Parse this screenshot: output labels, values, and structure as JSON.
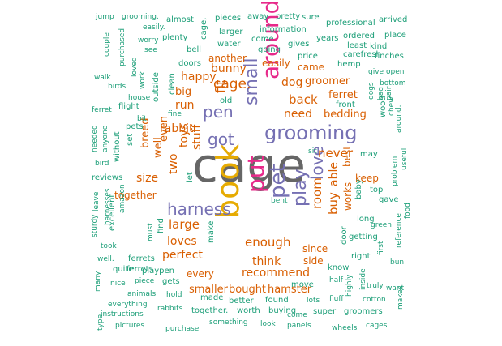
{
  "colors": {
    "green": "#1b9e77",
    "orange": "#d95f02",
    "purple": "#7570b3",
    "magenta": "#e7298a",
    "gold": "#e6ab02",
    "gray": "#666666"
  },
  "words": [
    {
      "text": "cage",
      "color": "gray"
    },
    {
      "text": "book",
      "color": "gold"
    },
    {
      "text": "around",
      "color": "magenta"
    },
    {
      "text": "put",
      "color": "magenta"
    },
    {
      "text": "grooming",
      "color": "purple"
    },
    {
      "text": "pet",
      "color": "purple"
    },
    {
      "text": "got",
      "color": "purple"
    },
    {
      "text": "small",
      "color": "purple"
    },
    {
      "text": "harness",
      "color": "purple"
    },
    {
      "text": "play",
      "color": "purple"
    },
    {
      "text": "pen",
      "color": "purple"
    },
    {
      "text": "love",
      "color": "purple"
    },
    {
      "text": "cage.",
      "color": "orange"
    },
    {
      "text": "large",
      "color": "orange"
    },
    {
      "text": "enough",
      "color": "orange"
    },
    {
      "text": "recommend",
      "color": "orange"
    },
    {
      "text": "back",
      "color": "orange"
    },
    {
      "text": "need",
      "color": "orange"
    },
    {
      "text": "never",
      "color": "orange"
    },
    {
      "text": "able",
      "color": "orange"
    },
    {
      "text": "room",
      "color": "orange"
    },
    {
      "text": "buy",
      "color": "orange"
    },
    {
      "text": "dog",
      "color": "orange"
    },
    {
      "text": "bunny",
      "color": "orange"
    },
    {
      "text": "happy",
      "color": "orange"
    },
    {
      "text": "run",
      "color": "orange"
    },
    {
      "text": "rabbit",
      "color": "orange"
    },
    {
      "text": "stuff",
      "color": "orange"
    },
    {
      "text": "two",
      "color": "orange"
    },
    {
      "text": "toys",
      "color": "orange"
    },
    {
      "text": "size",
      "color": "orange"
    },
    {
      "text": "loves",
      "color": "orange"
    },
    {
      "text": "perfect",
      "color": "orange"
    },
    {
      "text": "think",
      "color": "orange"
    },
    {
      "text": "bedding",
      "color": "orange"
    },
    {
      "text": "ferret",
      "color": "orange"
    },
    {
      "text": "another",
      "color": "orange"
    },
    {
      "text": "easily",
      "color": "orange"
    },
    {
      "text": "groomer",
      "color": "orange"
    },
    {
      "text": "fit",
      "color": "orange"
    },
    {
      "text": "big",
      "color": "orange"
    },
    {
      "text": "breed",
      "color": "orange"
    },
    {
      "text": "well",
      "color": "orange"
    },
    {
      "text": "even",
      "color": "orange"
    },
    {
      "text": "hamster",
      "color": "orange"
    },
    {
      "text": "smaller",
      "color": "orange"
    },
    {
      "text": "bought",
      "color": "orange"
    },
    {
      "text": "side",
      "color": "orange"
    },
    {
      "text": "since",
      "color": "orange"
    },
    {
      "text": "every",
      "color": "orange"
    },
    {
      "text": "works",
      "color": "orange"
    },
    {
      "text": "keep",
      "color": "orange"
    },
    {
      "text": "best",
      "color": "orange"
    },
    {
      "text": "together",
      "color": "orange"
    },
    {
      "text": "came",
      "color": "orange"
    },
    {
      "text": "jump",
      "color": "green"
    },
    {
      "text": "grooming.",
      "color": "green"
    },
    {
      "text": "almost",
      "color": "green"
    },
    {
      "text": "pieces",
      "color": "green"
    },
    {
      "text": "away",
      "color": "green"
    },
    {
      "text": "pretty",
      "color": "green"
    },
    {
      "text": "sure",
      "color": "green"
    },
    {
      "text": "professional",
      "color": "green"
    },
    {
      "text": "arrived",
      "color": "green"
    },
    {
      "text": "couple",
      "color": "green"
    },
    {
      "text": "easily.",
      "color": "green"
    },
    {
      "text": "worry",
      "color": "green"
    },
    {
      "text": "plenty",
      "color": "green"
    },
    {
      "text": "cage,",
      "color": "green"
    },
    {
      "text": "larger",
      "color": "green"
    },
    {
      "text": "information",
      "color": "green"
    },
    {
      "text": "years",
      "color": "green"
    },
    {
      "text": "ordered",
      "color": "green"
    },
    {
      "text": "place",
      "color": "green"
    },
    {
      "text": "purchased",
      "color": "green"
    },
    {
      "text": "see",
      "color": "green"
    },
    {
      "text": "bell",
      "color": "green"
    },
    {
      "text": "water",
      "color": "green"
    },
    {
      "text": "come",
      "color": "green"
    },
    {
      "text": "gives",
      "color": "green"
    },
    {
      "text": "least",
      "color": "green"
    },
    {
      "text": "kind",
      "color": "green"
    },
    {
      "text": "going",
      "color": "green"
    },
    {
      "text": "price",
      "color": "green"
    },
    {
      "text": "carefresh",
      "color": "green"
    },
    {
      "text": "finches",
      "color": "green"
    },
    {
      "text": "loved",
      "color": "green"
    },
    {
      "text": "doors",
      "color": "green"
    },
    {
      "text": "hemp",
      "color": "green"
    },
    {
      "text": "give",
      "color": "green"
    },
    {
      "text": "open",
      "color": "green"
    },
    {
      "text": "walk",
      "color": "green"
    },
    {
      "text": "work",
      "color": "green"
    },
    {
      "text": "birds",
      "color": "green"
    },
    {
      "text": "clean",
      "color": "green"
    },
    {
      "text": "bottom",
      "color": "green"
    },
    {
      "text": "house",
      "color": "green"
    },
    {
      "text": "dogs",
      "color": "green"
    },
    {
      "text": "bag",
      "color": "green"
    },
    {
      "text": "pair",
      "color": "green"
    },
    {
      "text": "ferret",
      "color": "green"
    },
    {
      "text": "flight",
      "color": "green"
    },
    {
      "text": "outside",
      "color": "green"
    },
    {
      "text": "old",
      "color": "green"
    },
    {
      "text": "front",
      "color": "green"
    },
    {
      "text": "fine",
      "color": "green"
    },
    {
      "text": "wood",
      "color": "green"
    },
    {
      "text": "chew",
      "color": "green"
    },
    {
      "text": "needed",
      "color": "green"
    },
    {
      "text": "bit",
      "color": "green"
    },
    {
      "text": "around.",
      "color": "green"
    },
    {
      "text": "anyone",
      "color": "green"
    },
    {
      "text": "pets",
      "color": "green"
    },
    {
      "text": "sit",
      "color": "green"
    },
    {
      "text": "may",
      "color": "green"
    },
    {
      "text": "without",
      "color": "green"
    },
    {
      "text": "set",
      "color": "green"
    },
    {
      "text": "useful",
      "color": "green"
    },
    {
      "text": "bird",
      "color": "green"
    },
    {
      "text": "problem",
      "color": "green"
    },
    {
      "text": "reviews",
      "color": "green"
    },
    {
      "text": "let",
      "color": "green"
    },
    {
      "text": "top",
      "color": "green"
    },
    {
      "text": "leave",
      "color": "green"
    },
    {
      "text": "baby",
      "color": "green"
    },
    {
      "text": "gave",
      "color": "green"
    },
    {
      "text": "harnesses",
      "color": "green"
    },
    {
      "text": "bent",
      "color": "green"
    },
    {
      "text": "sturdy",
      "color": "green"
    },
    {
      "text": "amazon",
      "color": "green"
    },
    {
      "text": "long",
      "color": "green"
    },
    {
      "text": "food",
      "color": "green"
    },
    {
      "text": "excellent",
      "color": "green"
    },
    {
      "text": "find",
      "color": "green"
    },
    {
      "text": "green",
      "color": "green"
    },
    {
      "text": "ferrets",
      "color": "green"
    },
    {
      "text": "must",
      "color": "green"
    },
    {
      "text": "make",
      "color": "green"
    },
    {
      "text": "door",
      "color": "green"
    },
    {
      "text": "getting",
      "color": "green"
    },
    {
      "text": "reference",
      "color": "green"
    },
    {
      "text": "took",
      "color": "green"
    },
    {
      "text": "first",
      "color": "green"
    },
    {
      "text": "right",
      "color": "green"
    },
    {
      "text": "well.",
      "color": "green"
    },
    {
      "text": "bun",
      "color": "green"
    },
    {
      "text": "ferrets",
      "color": "green"
    },
    {
      "text": "quite",
      "color": "green"
    },
    {
      "text": "playpen",
      "color": "green"
    },
    {
      "text": "know",
      "color": "green"
    },
    {
      "text": "many",
      "color": "green"
    },
    {
      "text": "nice",
      "color": "green"
    },
    {
      "text": "piece",
      "color": "green"
    },
    {
      "text": "gets",
      "color": "green"
    },
    {
      "text": "half",
      "color": "green"
    },
    {
      "text": "inside",
      "color": "green"
    },
    {
      "text": "truly",
      "color": "green"
    },
    {
      "text": "want",
      "color": "green"
    },
    {
      "text": "animals",
      "color": "green"
    },
    {
      "text": "hold",
      "color": "green"
    },
    {
      "text": "made",
      "color": "green"
    },
    {
      "text": "move",
      "color": "green"
    },
    {
      "text": "fluff",
      "color": "green"
    },
    {
      "text": "highly",
      "color": "green"
    },
    {
      "text": "everything",
      "color": "green"
    },
    {
      "text": "rabbits",
      "color": "green"
    },
    {
      "text": "better",
      "color": "green"
    },
    {
      "text": "found",
      "color": "green"
    },
    {
      "text": "lots",
      "color": "green"
    },
    {
      "text": "cotton",
      "color": "green"
    },
    {
      "text": "instructions",
      "color": "green"
    },
    {
      "text": "come",
      "color": "green"
    },
    {
      "text": "together.",
      "color": "green"
    },
    {
      "text": "worth",
      "color": "green"
    },
    {
      "text": "buying",
      "color": "green"
    },
    {
      "text": "super",
      "color": "green"
    },
    {
      "text": "groomers",
      "color": "green"
    },
    {
      "text": "makes",
      "color": "green"
    },
    {
      "text": "type",
      "color": "green"
    },
    {
      "text": "pictures",
      "color": "green"
    },
    {
      "text": "purchase",
      "color": "green"
    },
    {
      "text": "something",
      "color": "green"
    },
    {
      "text": "look",
      "color": "green"
    },
    {
      "text": "panels",
      "color": "green"
    },
    {
      "text": "wheels",
      "color": "green"
    },
    {
      "text": "cages",
      "color": "green"
    }
  ]
}
